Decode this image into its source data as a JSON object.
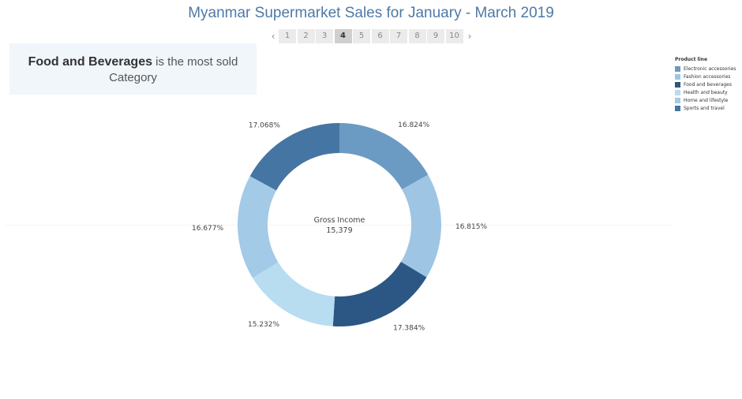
{
  "header": {
    "title": "Myanmar Supermarket Sales for January - March 2019"
  },
  "pager": {
    "prev_icon": "chevron-left-icon",
    "next_icon": "chevron-right-icon",
    "pages": [
      "1",
      "2",
      "3",
      "4",
      "5",
      "6",
      "7",
      "8",
      "9",
      "10"
    ],
    "active_index": 3
  },
  "callout": {
    "highlight": "Food and Beverages",
    "rest": " is the most sold Category"
  },
  "legend": {
    "title": "Product line"
  },
  "center": {
    "label": "Gross Income",
    "value": "15,379"
  },
  "chart_data": {
    "type": "pie",
    "donut": true,
    "title": "Myanmar Supermarket Sales for January - March 2019",
    "legend_position": "top-right",
    "slices": [
      {
        "name": "Electronic accessories",
        "value": 16.824,
        "label": "16.824%",
        "color": "#6b9bc3"
      },
      {
        "name": "Fashion accessories",
        "value": 16.815,
        "label": "16.815%",
        "color": "#9ec6e4"
      },
      {
        "name": "Food and beverages",
        "value": 17.384,
        "label": "17.384%",
        "color": "#2c5784"
      },
      {
        "name": "Health and beauty",
        "value": 15.232,
        "label": "15.232%",
        "color": "#b8dcf0"
      },
      {
        "name": "Home and lifestyle",
        "value": 16.677,
        "label": "16.677%",
        "color": "#a3cae6"
      },
      {
        "name": "Sports and travel",
        "value": 17.068,
        "label": "17.068%",
        "color": "#4575a3"
      }
    ],
    "center_label": "Gross Income",
    "center_value": "15,379"
  }
}
